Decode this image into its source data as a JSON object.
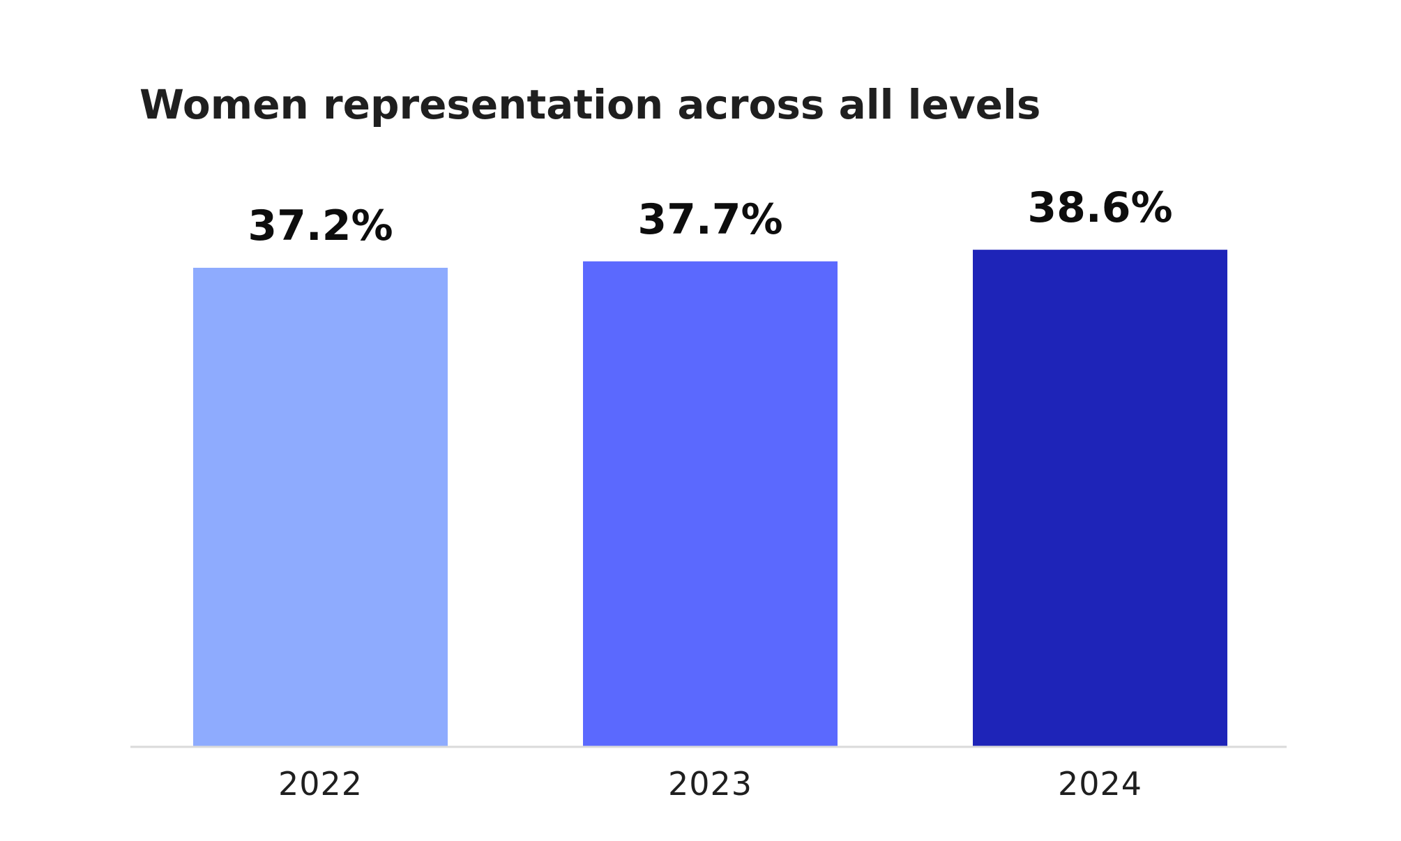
{
  "chart_data": {
    "type": "bar",
    "title": "Women representation across all levels",
    "xlabel": "",
    "ylabel": "",
    "categories": [
      "2022",
      "2023",
      "2024"
    ],
    "values": [
      37.2,
      37.7,
      38.6
    ],
    "value_labels": [
      "37.2%",
      "37.7%",
      "38.6%"
    ],
    "colors": [
      "#8eabfe",
      "#5b69fe",
      "#1e24b8"
    ],
    "axis_color": "#dadada",
    "grid": false,
    "legend": "none"
  }
}
